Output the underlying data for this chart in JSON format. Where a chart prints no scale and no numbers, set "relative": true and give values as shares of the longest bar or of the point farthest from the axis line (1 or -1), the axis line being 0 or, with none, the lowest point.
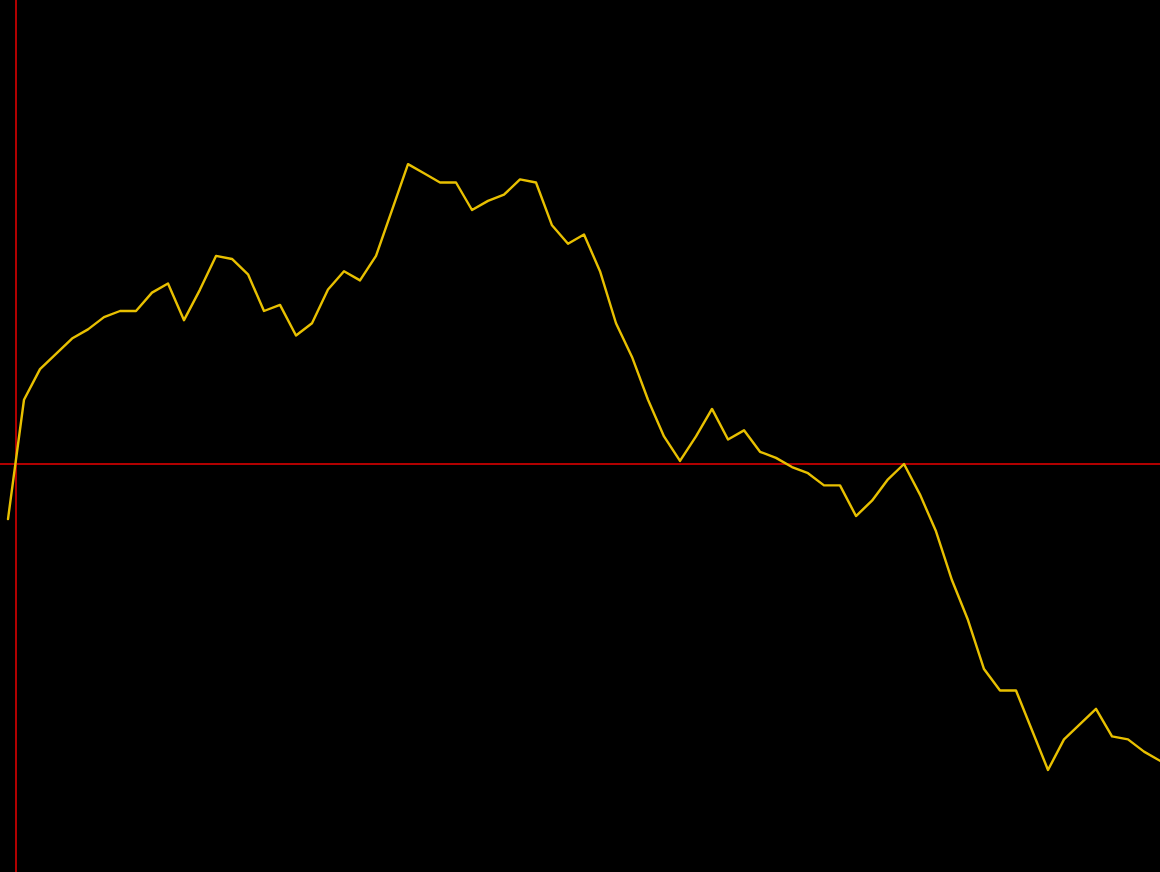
{
  "chart_data": {
    "type": "line",
    "relative": true,
    "color": "#e8c000",
    "ref_lines": [
      {
        "axis": "y",
        "value": 0,
        "color": "#b00000"
      }
    ],
    "categories": [
      null,
      null,
      null,
      null,
      null,
      null,
      null,
      null,
      null,
      null,
      null,
      null,
      null,
      null,
      null,
      null,
      null,
      null,
      null,
      null,
      null,
      null,
      null,
      null,
      null,
      null,
      null,
      null,
      null,
      null,
      null,
      null,
      null,
      null,
      null,
      null,
      null,
      null,
      null,
      null,
      null,
      null,
      null,
      null,
      null,
      null,
      null,
      null,
      null,
      null,
      null,
      null,
      null,
      null,
      null,
      null,
      null,
      null,
      null,
      null,
      null,
      null,
      null,
      null,
      null,
      null,
      null,
      null,
      null,
      null,
      null,
      null,
      null
    ],
    "values": [
      -0.18,
      0.21,
      0.31,
      0.36,
      0.41,
      0.44,
      0.48,
      0.5,
      0.5,
      0.56,
      0.59,
      0.47,
      0.57,
      0.68,
      0.67,
      0.62,
      0.5,
      0.52,
      0.42,
      0.46,
      0.57,
      0.63,
      0.6,
      0.68,
      0.83,
      0.98,
      0.95,
      0.92,
      0.92,
      0.83,
      0.86,
      0.88,
      0.93,
      0.92,
      0.78,
      0.72,
      0.75,
      0.63,
      0.46,
      0.35,
      0.21,
      0.09,
      0.01,
      0.09,
      0.18,
      0.08,
      0.11,
      0.04,
      0.02,
      -0.01,
      -0.03,
      -0.07,
      -0.07,
      -0.17,
      -0.12,
      -0.05,
      0,
      -0.1,
      -0.22,
      -0.38,
      -0.51,
      -0.67,
      -0.74,
      -0.74,
      -0.87,
      -1,
      -0.9,
      -0.85,
      -0.8,
      -0.89,
      -0.9,
      -0.94,
      -0.97
    ]
  }
}
